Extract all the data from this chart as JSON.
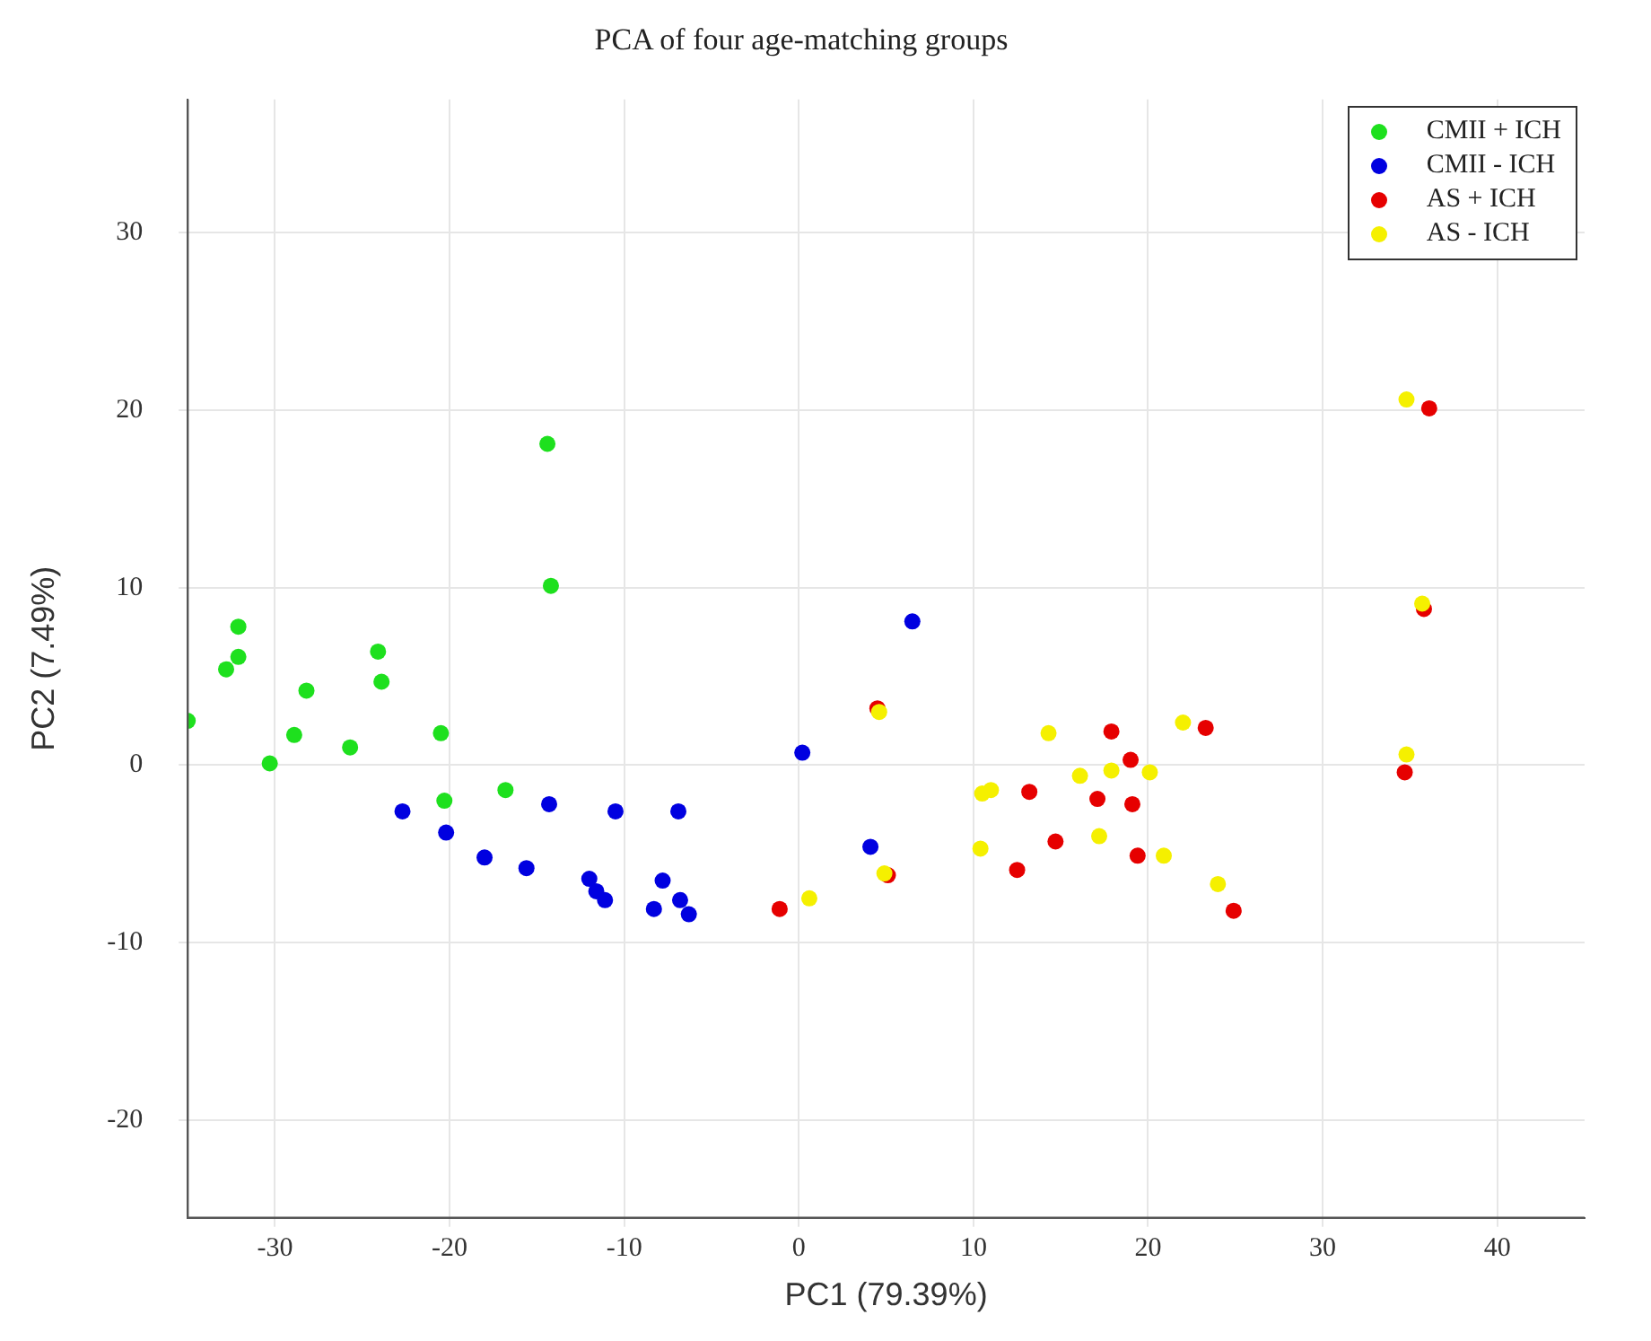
{
  "chart_data": {
    "type": "scatter",
    "title": "PCA of four age-matching groups",
    "xlabel": "PC1 (79.39%)",
    "ylabel": "PC2 (7.49%)",
    "xlim": [
      -35,
      45
    ],
    "xticks": [
      -30,
      -20,
      -10,
      0,
      10,
      20,
      30,
      40
    ],
    "ylim": [
      -25.5,
      37.5
    ],
    "yticks": [
      -20,
      -10,
      0,
      10,
      20,
      30
    ],
    "grid": true,
    "legend": "top right",
    "marker": "circle",
    "series": [
      {
        "name": "CMII + ICH",
        "color": "#1ee01e",
        "x": [
          -35,
          -32.1,
          -32.1,
          -32.8,
          -28.2,
          -28.9,
          -30.3,
          -25.7,
          -24.1,
          -23.9,
          -20.5,
          -20.3,
          -16.8,
          -14.4,
          -14.2
        ],
        "values": [
          2.5,
          7.8,
          6.1,
          5.4,
          4.2,
          1.7,
          0.1,
          1,
          6.4,
          4.7,
          1.8,
          -2,
          -1.4,
          18.1,
          10.1
        ]
      },
      {
        "name": "CMII - ICH",
        "color": "#0000e0",
        "x": [
          -22.7,
          -20.2,
          -18,
          -15.6,
          -14.3,
          -12,
          -11.6,
          -11.1,
          -10.5,
          -8.3,
          -7.8,
          -6.9,
          -6.8,
          -6.3,
          0.2,
          4.1,
          6.5
        ],
        "values": [
          -2.6,
          -3.8,
          -5.2,
          -5.8,
          -2.2,
          -6.4,
          -7.1,
          -7.6,
          -2.6,
          -8.1,
          -6.5,
          -2.6,
          -7.6,
          -8.4,
          0.7,
          -4.6,
          8.1
        ]
      },
      {
        "name": "AS + ICH",
        "color": "#e60000",
        "x": [
          -1.1,
          4.5,
          5.1,
          12.5,
          13.2,
          14.7,
          17.1,
          17.9,
          19,
          19.1,
          19.4,
          23.3,
          24.9,
          34.7,
          35.8,
          36.1
        ],
        "values": [
          -8.1,
          3.2,
          -6.2,
          -5.9,
          -1.5,
          -4.3,
          -1.9,
          1.9,
          0.3,
          -2.2,
          -5.1,
          2.1,
          -8.2,
          -0.4,
          8.8,
          20.1
        ]
      },
      {
        "name": "AS - ICH",
        "color": "#f5f000",
        "x": [
          0.6,
          4.6,
          4.9,
          10.4,
          10.5,
          11,
          14.3,
          16.1,
          17.2,
          17.9,
          20.1,
          20.9,
          22,
          24,
          34.8,
          35.7,
          34.8
        ],
        "values": [
          -7.5,
          3,
          -6.1,
          -4.7,
          -1.6,
          -1.4,
          1.8,
          -0.6,
          -4,
          -0.3,
          -0.4,
          -5.1,
          2.4,
          -6.7,
          0.6,
          9.1,
          20.6
        ]
      }
    ]
  }
}
